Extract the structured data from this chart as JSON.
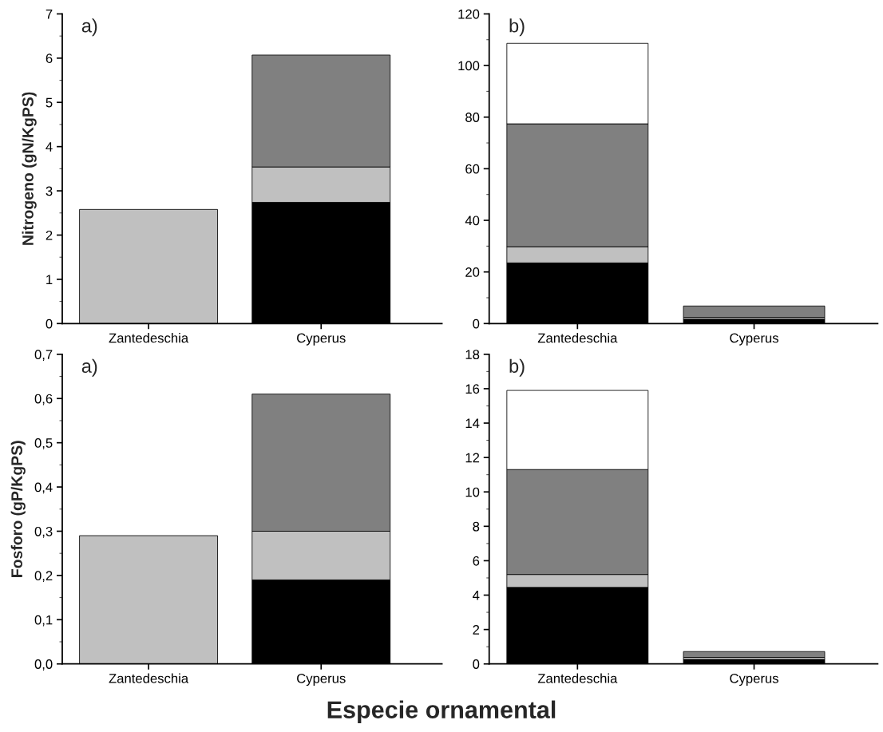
{
  "chart_data": [
    {
      "type": "bar",
      "stacked": true,
      "ylabel": "Nitrogeno (gN/KgPS)",
      "annotations": [
        "a)"
      ],
      "categories": [
        "Zantedeschia",
        "Cyperus"
      ],
      "ylim": [
        0,
        7
      ],
      "yticks": [
        0,
        1,
        2,
        3,
        4,
        5,
        6,
        7
      ],
      "series": [
        {
          "color": "#000000",
          "values": [
            0,
            2.74
          ]
        },
        {
          "color": "#c0c0c0",
          "values": [
            2.58,
            0.8
          ]
        },
        {
          "color": "#808080",
          "values": [
            0,
            2.53
          ]
        }
      ]
    },
    {
      "type": "bar",
      "stacked": true,
      "annotations": [
        "b)"
      ],
      "categories": [
        "Zantedeschia",
        "Cyperus"
      ],
      "ylim": [
        0,
        120
      ],
      "yticks": [
        0,
        20,
        40,
        60,
        80,
        100,
        120
      ],
      "series": [
        {
          "color": "#000000",
          "values": [
            23.5,
            1.7
          ]
        },
        {
          "color": "#c0c0c0",
          "values": [
            6.3,
            0.7
          ]
        },
        {
          "color": "#808080",
          "values": [
            47.6,
            4.4
          ]
        },
        {
          "color": "#ffffff",
          "values": [
            31.2,
            0
          ]
        }
      ]
    },
    {
      "type": "bar",
      "stacked": true,
      "ylabel": "Fosforo (gP/KgPS)",
      "annotations": [
        "a)"
      ],
      "categories": [
        "Zantedeschia",
        "Cyperus"
      ],
      "ylim": [
        0,
        0.7
      ],
      "yticks": [
        {
          "value": 0,
          "label": "0,0"
        },
        {
          "value": 0.1,
          "label": "0,1"
        },
        {
          "value": 0.2,
          "label": "0,2"
        },
        {
          "value": 0.3,
          "label": "0,3"
        },
        {
          "value": 0.4,
          "label": "0,4"
        },
        {
          "value": 0.5,
          "label": "0,5"
        },
        {
          "value": 0.6,
          "label": "0,6"
        },
        {
          "value": 0.7,
          "label": "0,7"
        }
      ],
      "series": [
        {
          "color": "#000000",
          "values": [
            0,
            0.19
          ]
        },
        {
          "color": "#c0c0c0",
          "values": [
            0.29,
            0.11
          ]
        },
        {
          "color": "#808080",
          "values": [
            0,
            0.31
          ]
        }
      ]
    },
    {
      "type": "bar",
      "stacked": true,
      "xlabel": "Especie ornamental",
      "annotations": [
        "b)"
      ],
      "categories": [
        "Zantedeschia",
        "Cyperus"
      ],
      "ylim": [
        0,
        18
      ],
      "yticks": [
        0,
        2,
        4,
        6,
        8,
        10,
        12,
        14,
        16,
        18
      ],
      "series": [
        {
          "color": "#000000",
          "values": [
            4.45,
            0.26
          ]
        },
        {
          "color": "#c0c0c0",
          "values": [
            0.75,
            0.12
          ]
        },
        {
          "color": "#808080",
          "values": [
            6.1,
            0.34
          ]
        },
        {
          "color": "#ffffff",
          "values": [
            4.6,
            0
          ]
        }
      ]
    }
  ]
}
